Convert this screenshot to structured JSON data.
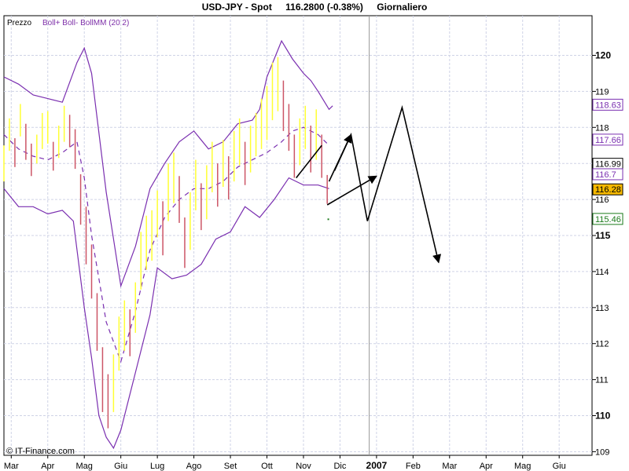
{
  "header": {
    "symbol": "USD-JPY - Spot",
    "price_change": "116.2800 (-0.38%)",
    "period": "Giornaliero"
  },
  "panel": {
    "label": "Prezzo",
    "indicator": "Boll+ Boll- BollMM (20 2)"
  },
  "credit": "© IT-Finance.com",
  "colors": {
    "bar_up": "#ffff33",
    "bar_down": "#cc5566",
    "band": "#7a2fb0",
    "last_price_bg": "#f5b800",
    "grid": "#cfd3e6"
  },
  "chart_data": {
    "type": "line",
    "title": "USD-JPY - Spot",
    "ylim": [
      108.9,
      121.1
    ],
    "y_ticks": [
      {
        "value": 109,
        "label": "109"
      },
      {
        "value": 110,
        "label": "110"
      },
      {
        "value": 111,
        "label": "111"
      },
      {
        "value": 112,
        "label": "112"
      },
      {
        "value": 113,
        "label": "113"
      },
      {
        "value": 114,
        "label": "114"
      },
      {
        "value": 115,
        "label": "115"
      },
      {
        "value": 116,
        "label": "116"
      },
      {
        "value": 117,
        "label": "117"
      },
      {
        "value": 118,
        "label": "118"
      },
      {
        "value": 119,
        "label": "119"
      },
      {
        "value": 120,
        "label": "120"
      }
    ],
    "bold_y_ticks": [
      "110",
      "115",
      "120"
    ],
    "x_ticks": [
      "Mar",
      "Apr",
      "Mag",
      "Giu",
      "Lug",
      "Ago",
      "Set",
      "Ott",
      "Nov",
      "Dic",
      "2007",
      "Feb",
      "Mar",
      "Apr",
      "Mag",
      "Giu"
    ],
    "x_tick_positions": [
      0.2,
      1.2,
      2.2,
      3.2,
      4.2,
      5.2,
      6.2,
      7.2,
      8.2,
      9.2,
      10.2,
      11.2,
      12.2,
      13.2,
      14.2,
      15.2
    ],
    "xlim": [
      0,
      16.1
    ],
    "year_separator": 10.0,
    "upper_band": {
      "x": [
        0.0,
        0.4,
        0.8,
        1.2,
        1.6,
        2.0,
        2.2,
        2.4,
        2.8,
        3.2,
        3.6,
        4.0,
        4.4,
        4.8,
        5.2,
        5.6,
        6.0,
        6.4,
        6.8,
        7.0,
        7.2,
        7.6,
        7.9,
        8.2,
        8.4,
        8.6,
        8.9,
        9.0
      ],
      "y": [
        119.4,
        119.2,
        118.9,
        118.8,
        118.7,
        119.8,
        120.2,
        119.5,
        116.2,
        113.6,
        114.7,
        116.3,
        117.0,
        117.6,
        117.9,
        117.4,
        117.6,
        118.1,
        118.2,
        118.5,
        119.4,
        120.4,
        119.9,
        119.5,
        119.3,
        119.0,
        118.5,
        118.6
      ]
    },
    "lower_band": {
      "x": [
        0.0,
        0.4,
        0.8,
        1.2,
        1.6,
        1.9,
        2.2,
        2.4,
        2.6,
        2.8,
        3.0,
        3.2,
        3.6,
        4.0,
        4.2,
        4.6,
        5.0,
        5.4,
        5.8,
        6.2,
        6.6,
        7.0,
        7.4,
        7.8,
        8.2,
        8.6,
        8.9
      ],
      "y": [
        116.3,
        115.8,
        115.8,
        115.6,
        115.7,
        115.4,
        113.0,
        111.6,
        110.0,
        109.4,
        109.1,
        109.6,
        111.2,
        112.8,
        114.1,
        113.8,
        113.9,
        114.2,
        114.9,
        115.1,
        115.8,
        115.5,
        116.0,
        116.6,
        116.4,
        116.4,
        116.3
      ]
    },
    "mid_band": {
      "x": [
        0.0,
        0.4,
        0.8,
        1.2,
        1.6,
        2.0,
        2.2,
        2.4,
        2.8,
        3.2,
        3.6,
        4.0,
        4.4,
        4.8,
        5.2,
        5.6,
        6.0,
        6.4,
        6.8,
        7.2,
        7.6,
        7.9,
        8.2,
        8.6,
        8.9
      ],
      "y": [
        117.8,
        117.4,
        117.2,
        117.1,
        117.3,
        117.6,
        116.6,
        115.0,
        112.6,
        111.5,
        112.9,
        114.6,
        115.5,
        116.0,
        116.3,
        116.3,
        116.5,
        116.9,
        117.1,
        117.3,
        117.6,
        117.9,
        118.0,
        117.8,
        117.5
      ]
    },
    "price_bars": {
      "x": [
        0.0,
        0.15,
        0.3,
        0.45,
        0.6,
        0.75,
        0.9,
        1.05,
        1.2,
        1.35,
        1.5,
        1.65,
        1.8,
        1.95,
        2.1,
        2.25,
        2.4,
        2.55,
        2.7,
        2.85,
        3.0,
        3.15,
        3.3,
        3.45,
        3.6,
        3.75,
        3.9,
        4.05,
        4.2,
        4.35,
        4.5,
        4.65,
        4.8,
        4.95,
        5.1,
        5.25,
        5.4,
        5.55,
        5.7,
        5.85,
        6.0,
        6.15,
        6.3,
        6.45,
        6.6,
        6.75,
        6.9,
        7.05,
        7.2,
        7.35,
        7.5,
        7.65,
        7.8,
        7.95,
        8.1,
        8.25,
        8.4,
        8.55,
        8.7,
        8.85
      ],
      "y": [
        117.0,
        117.8,
        117.3,
        118.2,
        117.6,
        117.1,
        117.4,
        117.9,
        118.0,
        117.2,
        117.6,
        118.1,
        117.9,
        117.4,
        116.0,
        115.0,
        114.0,
        112.6,
        111.0,
        110.4,
        110.9,
        112.0,
        112.5,
        112.3,
        113.0,
        114.3,
        114.8,
        115.0,
        115.6,
        115.2,
        116.2,
        116.6,
        116.0,
        114.8,
        115.4,
        116.4,
        115.8,
        116.2,
        116.9,
        116.4,
        117.0,
        116.6,
        117.2,
        117.6,
        117.0,
        117.4,
        117.8,
        118.1,
        118.4,
        119.0,
        119.2,
        118.6,
        118.0,
        117.2,
        117.6,
        118.0,
        117.4,
        117.8,
        117.2,
        116.28
      ],
      "range": [
        1.0,
        0.9,
        0.8,
        0.9,
        1.0,
        0.9,
        0.8,
        1.0,
        0.9,
        0.8,
        0.9,
        1.0,
        0.9,
        1.1,
        1.4,
        1.6,
        1.5,
        1.6,
        1.8,
        1.5,
        1.6,
        1.5,
        1.4,
        1.3,
        1.4,
        1.6,
        1.5,
        1.4,
        1.3,
        1.5,
        1.6,
        1.4,
        1.3,
        1.4,
        1.6,
        1.4,
        1.3,
        1.5,
        1.4,
        1.2,
        1.3,
        1.2,
        1.4,
        1.3,
        1.2,
        1.3,
        1.2,
        1.4,
        1.5,
        1.6,
        1.5,
        1.4,
        1.3,
        1.2,
        1.3,
        1.2,
        1.3,
        1.4,
        1.2,
        0.8
      ]
    },
    "forecast_lines": [
      {
        "points": [
          [
            8.85,
            115.85
          ],
          [
            10.2,
            116.65
          ]
        ],
        "arrow": true
      },
      {
        "points": [
          [
            9.05,
            116.8
          ],
          [
            9.5,
            117.8
          ],
          [
            9.95,
            115.4
          ],
          [
            10.9,
            118.55
          ],
          [
            11.9,
            114.25
          ]
        ],
        "arrow": true
      },
      {
        "points": [
          [
            8.0,
            116.6
          ],
          [
            8.7,
            117.5
          ]
        ],
        "arrow": false
      },
      {
        "points": [
          [
            8.9,
            116.5
          ],
          [
            9.5,
            117.8
          ]
        ],
        "arrow": true
      }
    ],
    "last_point_marker": {
      "x": 8.88,
      "y": 115.45
    },
    "right_labels": [
      {
        "value": 118.63,
        "label": "118.63",
        "color": "#7a2fb0",
        "bg": "#ffffff"
      },
      {
        "value": 117.66,
        "label": "117.66",
        "color": "#7a2fb0",
        "bg": "#ffffff"
      },
      {
        "value": 116.99,
        "label": "116.99",
        "color": "#000000",
        "bg": "#ffffff"
      },
      {
        "value": 116.7,
        "label": "116.7",
        "color": "#7a2fb0",
        "bg": "#ffffff"
      },
      {
        "value": 116.28,
        "label": "116.28",
        "color": "#000000",
        "bg": "#f5b800"
      },
      {
        "value": 115.46,
        "label": "115.46",
        "color": "#1a7a1a",
        "bg": "#ffffff"
      }
    ],
    "grid": true
  }
}
